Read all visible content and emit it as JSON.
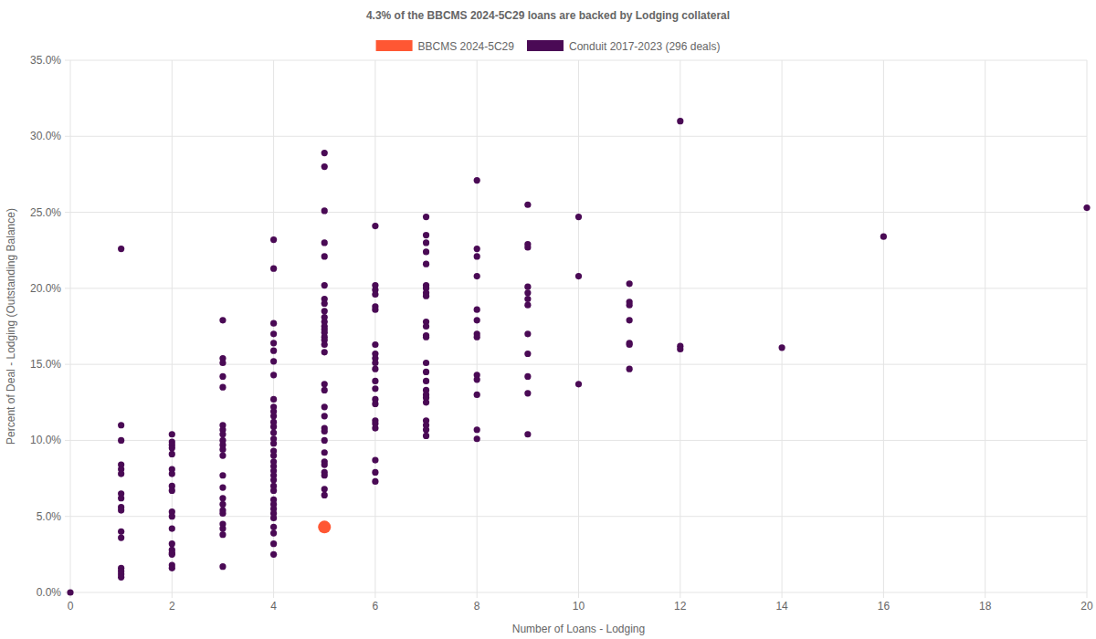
{
  "chart_data": {
    "type": "scatter",
    "title": "4.3% of the BBCMS 2024-5C29 loans are backed by Lodging collateral",
    "x_label": "Number of Loans - Lodging",
    "y_label": "Percent of Deal - Lodging (Outstanding Balance)",
    "legend": "top",
    "grid": true,
    "xlim": [
      0,
      20
    ],
    "ylim": [
      0,
      35
    ],
    "xticks": [
      0,
      2,
      4,
      6,
      8,
      10,
      12,
      14,
      16,
      18,
      20
    ],
    "yticks": [
      {
        "value": 0,
        "label": "0.0%"
      },
      {
        "value": 5,
        "label": "5.0%"
      },
      {
        "value": 10,
        "label": "10.0%"
      },
      {
        "value": 15,
        "label": "15.0%"
      },
      {
        "value": 20,
        "label": "20.0%"
      },
      {
        "value": 25,
        "label": "25.0%"
      },
      {
        "value": 30,
        "label": "30.0%"
      },
      {
        "value": 35,
        "label": "35.0%"
      }
    ],
    "series": [
      {
        "name": "BBCMS 2024-5C29",
        "color": "#ff5733",
        "marker": "circle",
        "x": [
          5
        ],
        "values": [
          4.3
        ]
      },
      {
        "name": "Conduit 2017-2023 (296 deals)",
        "color": "#4a0a55",
        "marker": "circle",
        "x": [
          0,
          1,
          1,
          1,
          1,
          1,
          1,
          1,
          1,
          1,
          1,
          1,
          1,
          1,
          1,
          1,
          1,
          2,
          2,
          2,
          2,
          2,
          2,
          2,
          2,
          2,
          2,
          2,
          2,
          2,
          2,
          2,
          2,
          2,
          2,
          3,
          3,
          3,
          3,
          3,
          3,
          3,
          3,
          3,
          3,
          3,
          3,
          3,
          3,
          3,
          3,
          3,
          3,
          3,
          3,
          3,
          3,
          4,
          4,
          4,
          4,
          4,
          4,
          4,
          4,
          4,
          4,
          4,
          4,
          4,
          4,
          4,
          4,
          4,
          4,
          4,
          4,
          4,
          4,
          4,
          4,
          4,
          4,
          4,
          4,
          4,
          4,
          4,
          4,
          4,
          4,
          4,
          5,
          5,
          5,
          5,
          5,
          5,
          5,
          5,
          5,
          5,
          5,
          5,
          5,
          5,
          5,
          5,
          5,
          5,
          5,
          5,
          5,
          5,
          5,
          5,
          5,
          5,
          5,
          5,
          5,
          5,
          5,
          5,
          6,
          6,
          6,
          6,
          6,
          6,
          6,
          6,
          6,
          6,
          6,
          6,
          6,
          6,
          6,
          6,
          6,
          6,
          6,
          6,
          6,
          7,
          7,
          7,
          7,
          7,
          7,
          7,
          7,
          7,
          7,
          7,
          7,
          7,
          7,
          7,
          7,
          7,
          7,
          7,
          7,
          7,
          7,
          7,
          7,
          8,
          8,
          8,
          8,
          8,
          8,
          8,
          8,
          8,
          8,
          8,
          8,
          8,
          9,
          9,
          9,
          9,
          9,
          9,
          9,
          9,
          9,
          9,
          9,
          9,
          10,
          10,
          10,
          11,
          11,
          11,
          11,
          11,
          11,
          11,
          12,
          12,
          12,
          14,
          16,
          20
        ],
        "values": [
          0,
          22.6,
          11.0,
          10.0,
          8.4,
          8.1,
          7.8,
          6.5,
          6.2,
          5.6,
          5.4,
          4.0,
          3.6,
          1.6,
          1.4,
          1.2,
          1.0,
          10.4,
          9.9,
          9.7,
          9.5,
          9.1,
          8.1,
          7.8,
          7.0,
          6.7,
          5.3,
          5.0,
          4.2,
          3.2,
          2.8,
          2.6,
          2.5,
          1.8,
          1.6,
          17.9,
          15.4,
          15.1,
          14.2,
          13.5,
          11.0,
          10.7,
          10.4,
          10.0,
          9.7,
          9.4,
          9.0,
          7.7,
          6.9,
          6.2,
          5.8,
          5.4,
          5.2,
          4.5,
          4.2,
          3.8,
          1.7,
          23.2,
          21.3,
          17.7,
          17.0,
          16.4,
          15.9,
          15.2,
          14.3,
          12.7,
          12.2,
          11.9,
          11.6,
          11.2,
          10.9,
          10.5,
          10.1,
          9.8,
          9.3,
          9.0,
          8.6,
          8.3,
          8.0,
          7.7,
          7.4,
          7.0,
          6.7,
          6.1,
          5.8,
          5.5,
          5.2,
          4.9,
          4.3,
          3.9,
          3.2,
          2.5,
          28.9,
          28.0,
          25.1,
          23.0,
          22.1,
          20.2,
          19.3,
          19.0,
          18.5,
          18.1,
          17.8,
          17.5,
          17.3,
          17.1,
          16.8,
          16.6,
          16.3,
          15.8,
          13.7,
          13.3,
          12.2,
          11.6,
          10.8,
          10.6,
          10.0,
          9.2,
          8.6,
          8.4,
          7.9,
          7.7,
          6.8,
          6.4,
          24.1,
          20.2,
          19.9,
          19.6,
          18.8,
          18.6,
          16.3,
          15.7,
          15.4,
          15.1,
          14.7,
          13.9,
          13.4,
          12.7,
          12.4,
          11.3,
          11.1,
          10.8,
          8.7,
          7.9,
          7.3,
          24.7,
          23.5,
          23.0,
          22.4,
          21.6,
          20.2,
          20.0,
          19.7,
          19.5,
          17.8,
          17.5,
          16.9,
          16.8,
          15.1,
          14.5,
          13.9,
          13.3,
          13.0,
          12.8,
          12.5,
          11.3,
          11.0,
          10.7,
          10.3,
          27.1,
          22.6,
          22.1,
          20.8,
          18.6,
          17.9,
          17.0,
          16.8,
          14.3,
          14.0,
          13.0,
          10.7,
          10.1,
          25.5,
          22.9,
          22.7,
          20.1,
          19.7,
          19.3,
          18.9,
          17.0,
          15.7,
          14.2,
          13.1,
          10.4,
          24.7,
          20.8,
          13.7,
          20.3,
          19.1,
          18.9,
          17.9,
          16.4,
          16.3,
          14.7,
          31.0,
          16.2,
          16.0,
          16.1,
          23.4,
          25.3
        ]
      }
    ]
  }
}
